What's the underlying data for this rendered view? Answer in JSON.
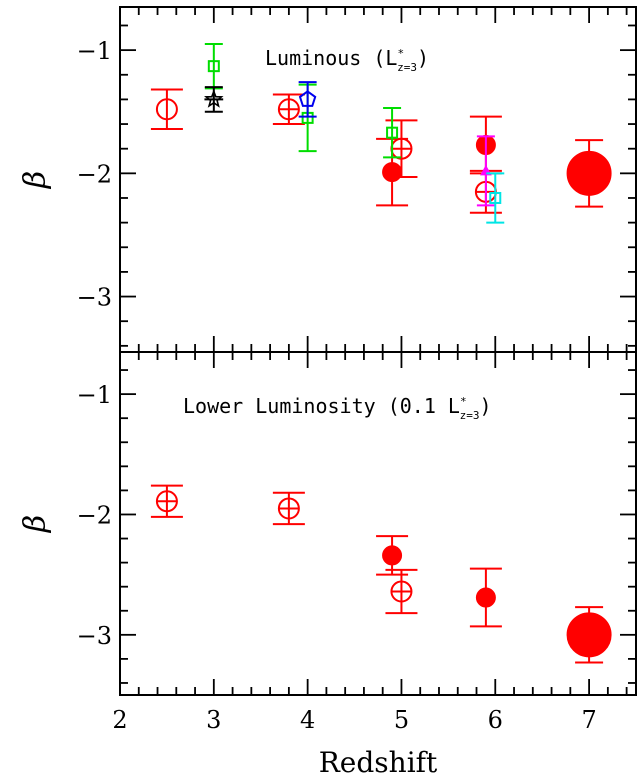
{
  "chart_data": [
    {
      "type": "scatter",
      "annotation": {
        "main": "Luminous (L",
        "sup": "*",
        "sub": "z=3",
        "close": ")"
      },
      "xlabel": "",
      "ylabel": "β",
      "xlim": [
        2,
        7.5
      ],
      "ylim": [
        -3.45,
        -0.65
      ],
      "x_ticks": [
        2,
        3,
        4,
        5,
        6,
        7
      ],
      "x_tick_labels": [],
      "y_ticks": [
        -1,
        -2,
        -3
      ],
      "y_tick_labels": [
        "−1",
        "−2",
        "−3"
      ],
      "series": [
        {
          "color": "#ff0000",
          "marker": "open-circle",
          "points": [
            {
              "x": 2.5,
              "y": -1.48,
              "err": 0.16,
              "xerr": 0.0
            },
            {
              "x": 3.8,
              "y": -1.48,
              "err": 0.12,
              "xerr": 0.1
            },
            {
              "x": 5.0,
              "y": -1.8,
              "err": 0.23,
              "xerr": 0.1
            },
            {
              "x": 5.9,
              "y": -2.15,
              "err": 0.17,
              "xerr": 0.1
            }
          ]
        },
        {
          "color": "#ff0000",
          "marker": "filled-circle",
          "points": [
            {
              "x": 4.9,
              "y": -1.99,
              "err": 0.27,
              "xerr": 0.1
            },
            {
              "x": 5.9,
              "y": -1.77,
              "err": 0.23,
              "xerr": 0.1
            }
          ]
        },
        {
          "color": "#ff0000",
          "marker": "big-filled-circle",
          "points": [
            {
              "x": 7.0,
              "y": -2.0,
              "err": 0.27,
              "xerr": 0.1
            }
          ]
        },
        {
          "color": "#00dd00",
          "marker": "open-square",
          "points": [
            {
              "x": 3.0,
              "y": -1.13,
              "err": 0.18,
              "xerr": 0.0
            },
            {
              "x": 4.0,
              "y": -1.55,
              "err": 0.27,
              "xerr": 0.0
            },
            {
              "x": 4.9,
              "y": -1.67,
              "err": 0.2,
              "xerr": 0.0
            }
          ]
        },
        {
          "color": "#000000",
          "marker": "star",
          "points": [
            {
              "x": 3.0,
              "y": -1.4,
              "err": 0.1,
              "xerr": 0.1
            }
          ]
        },
        {
          "color": "#0000ee",
          "marker": "pentagon",
          "points": [
            {
              "x": 4.0,
              "y": -1.4,
              "err": 0.14,
              "xerr": 0.0
            }
          ]
        },
        {
          "color": "#ff00ff",
          "marker": "filled-triangle",
          "points": [
            {
              "x": 5.9,
              "y": -1.98,
              "err": 0.28,
              "xerr": 0.0
            }
          ]
        },
        {
          "color": "#00e5e5",
          "marker": "open-square",
          "points": [
            {
              "x": 6.0,
              "y": -2.2,
              "err": 0.2,
              "xerr": 0.0
            }
          ]
        }
      ]
    },
    {
      "type": "scatter",
      "annotation": {
        "main": "Lower Luminosity (0.1 L",
        "sup": "*",
        "sub": "z=3",
        "close": ")"
      },
      "xlabel": "Redshift",
      "ylabel": "β",
      "xlim": [
        2,
        7.5
      ],
      "ylim": [
        -3.5,
        -0.65
      ],
      "x_ticks": [
        2,
        3,
        4,
        5,
        6,
        7
      ],
      "x_tick_labels": [
        "2",
        "3",
        "4",
        "5",
        "6",
        "7"
      ],
      "y_ticks": [
        -1,
        -2,
        -3
      ],
      "y_tick_labels": [
        "−1",
        "−2",
        "−3"
      ],
      "series": [
        {
          "color": "#ff0000",
          "marker": "open-circle",
          "points": [
            {
              "x": 2.5,
              "y": -1.89,
              "err": 0.13,
              "xerr": 0.1
            },
            {
              "x": 3.8,
              "y": -1.95,
              "err": 0.13,
              "xerr": 0.1
            },
            {
              "x": 5.0,
              "y": -2.64,
              "err": 0.18,
              "xerr": 0.1
            }
          ]
        },
        {
          "color": "#ff0000",
          "marker": "filled-circle",
          "points": [
            {
              "x": 4.9,
              "y": -2.34,
              "err": 0.16,
              "xerr": 0.1
            },
            {
              "x": 5.9,
              "y": -2.69,
              "err": 0.24,
              "xerr": 0.1
            }
          ]
        },
        {
          "color": "#ff0000",
          "marker": "big-filled-circle",
          "points": [
            {
              "x": 7.0,
              "y": -3.0,
              "err": 0.23,
              "xerr": 0.1
            }
          ]
        }
      ]
    }
  ]
}
